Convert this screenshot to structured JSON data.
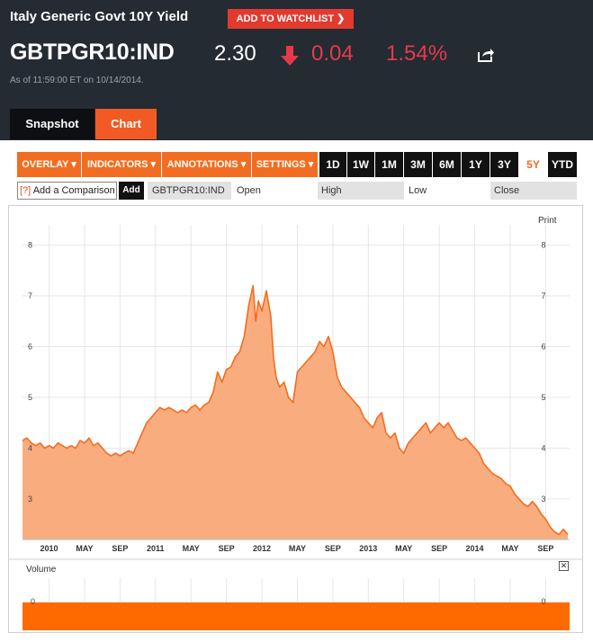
{
  "header": {
    "title": "Italy Generic Govt 10Y Yield",
    "watchlist_label": "ADD TO WATCHLIST",
    "ticker": "GBTPGR10:IND",
    "price": "2.30",
    "change": "0.04",
    "change_pct": "1.54%",
    "as_of": "As of 11:59:00 ET on 10/14/2014.",
    "change_color": "#e8394a",
    "arrow_icon": "down-arrow-icon",
    "share_icon": "share-icon"
  },
  "tabs": [
    {
      "label": "Snapshot"
    },
    {
      "label": "Chart",
      "active": true
    }
  ],
  "toolbar": {
    "menus": [
      "OVERLAY ▾",
      "INDICATORS ▾",
      "ANNOTATIONS ▾",
      "SETTINGS ▾"
    ],
    "ranges": [
      "1D",
      "1W",
      "1M",
      "3M",
      "6M",
      "1Y",
      "3Y",
      "5Y",
      "YTD"
    ],
    "active_range": "5Y",
    "accent_color": "#f26d21"
  },
  "comparison": {
    "icon_text": "[?]",
    "placeholder": "Add a Comparison",
    "add_label": "Add",
    "symbol": "GBTPGR10:IND",
    "open_label": "Open",
    "high_label": "High",
    "low_label": "Low",
    "close_label": "Close"
  },
  "print_label": "Print",
  "volume": {
    "label": "Volume",
    "zero_label": "0",
    "close_label": "✕"
  },
  "chart_data": {
    "type": "area",
    "ylim": [
      2.2,
      8.4
    ],
    "y_ticks": [
      "3",
      "4",
      "5",
      "6",
      "7",
      "8"
    ],
    "x_tick_labels": [
      "2010",
      "MAY",
      "SEP",
      "2011",
      "MAY",
      "SEP",
      "2012",
      "MAY",
      "SEP",
      "2013",
      "MAY",
      "SEP",
      "2014",
      "MAY",
      "SEP"
    ],
    "x_tick_months": [
      12,
      16,
      20,
      24,
      28,
      32,
      36,
      40,
      44,
      48,
      52,
      56,
      60,
      64,
      68
    ],
    "xlim_months": [
      9,
      70.7
    ],
    "series": [
      {
        "points": [
          [
            9.0,
            4.15
          ],
          [
            9.5,
            4.2
          ],
          [
            10,
            4.1
          ],
          [
            10.5,
            4.05
          ],
          [
            11,
            4.1
          ],
          [
            11.5,
            4.0
          ],
          [
            12,
            4.05
          ],
          [
            12.5,
            4.0
          ],
          [
            13,
            4.1
          ],
          [
            13.5,
            4.05
          ],
          [
            14,
            4.0
          ],
          [
            14.5,
            4.05
          ],
          [
            15,
            4.0
          ],
          [
            15.5,
            4.15
          ],
          [
            16,
            4.1
          ],
          [
            16.5,
            4.2
          ],
          [
            17,
            4.05
          ],
          [
            17.5,
            4.1
          ],
          [
            18,
            4.0
          ],
          [
            18.5,
            3.9
          ],
          [
            19,
            3.85
          ],
          [
            19.5,
            3.9
          ],
          [
            20,
            3.85
          ],
          [
            20.5,
            3.9
          ],
          [
            21,
            3.95
          ],
          [
            21.5,
            3.9
          ],
          [
            22,
            4.1
          ],
          [
            22.5,
            4.3
          ],
          [
            23,
            4.5
          ],
          [
            23.5,
            4.6
          ],
          [
            24,
            4.7
          ],
          [
            24.5,
            4.8
          ],
          [
            25,
            4.75
          ],
          [
            25.5,
            4.8
          ],
          [
            26,
            4.75
          ],
          [
            26.5,
            4.7
          ],
          [
            27,
            4.75
          ],
          [
            27.5,
            4.7
          ],
          [
            28,
            4.8
          ],
          [
            28.5,
            4.85
          ],
          [
            29,
            4.75
          ],
          [
            29.5,
            4.85
          ],
          [
            30,
            4.9
          ],
          [
            30.5,
            5.1
          ],
          [
            31,
            5.5
          ],
          [
            31.5,
            5.3
          ],
          [
            32,
            5.55
          ],
          [
            32.5,
            5.6
          ],
          [
            33,
            5.8
          ],
          [
            33.5,
            5.9
          ],
          [
            34,
            6.2
          ],
          [
            34.5,
            6.8
          ],
          [
            35,
            7.2
          ],
          [
            35.3,
            6.5
          ],
          [
            35.6,
            6.9
          ],
          [
            36,
            6.7
          ],
          [
            36.5,
            7.1
          ],
          [
            37,
            6.6
          ],
          [
            37.3,
            5.8
          ],
          [
            37.6,
            5.4
          ],
          [
            38,
            5.2
          ],
          [
            38.5,
            5.3
          ],
          [
            39,
            5.0
          ],
          [
            39.5,
            4.9
          ],
          [
            40,
            5.5
          ],
          [
            40.5,
            5.6
          ],
          [
            41,
            5.7
          ],
          [
            41.5,
            5.8
          ],
          [
            42,
            5.9
          ],
          [
            42.5,
            6.1
          ],
          [
            43,
            6.0
          ],
          [
            43.5,
            6.2
          ],
          [
            44,
            5.9
          ],
          [
            44.5,
            5.4
          ],
          [
            45,
            5.2
          ],
          [
            45.5,
            5.1
          ],
          [
            46,
            5.0
          ],
          [
            46.5,
            4.9
          ],
          [
            47,
            4.8
          ],
          [
            47.5,
            4.6
          ],
          [
            48,
            4.5
          ],
          [
            48.5,
            4.4
          ],
          [
            49,
            4.6
          ],
          [
            49.5,
            4.7
          ],
          [
            50,
            4.3
          ],
          [
            50.5,
            4.2
          ],
          [
            51,
            4.3
          ],
          [
            51.5,
            4.0
          ],
          [
            52,
            3.9
          ],
          [
            52.5,
            4.1
          ],
          [
            53,
            4.2
          ],
          [
            53.5,
            4.3
          ],
          [
            54,
            4.4
          ],
          [
            54.5,
            4.5
          ],
          [
            55,
            4.3
          ],
          [
            55.5,
            4.4
          ],
          [
            56,
            4.5
          ],
          [
            56.5,
            4.4
          ],
          [
            57,
            4.5
          ],
          [
            57.5,
            4.35
          ],
          [
            58,
            4.2
          ],
          [
            58.5,
            4.15
          ],
          [
            59,
            4.2
          ],
          [
            59.5,
            4.1
          ],
          [
            60,
            4.0
          ],
          [
            60.5,
            3.9
          ],
          [
            61,
            3.7
          ],
          [
            61.5,
            3.6
          ],
          [
            62,
            3.5
          ],
          [
            62.5,
            3.45
          ],
          [
            63,
            3.4
          ],
          [
            63.5,
            3.3
          ],
          [
            64,
            3.25
          ],
          [
            64.5,
            3.1
          ],
          [
            65,
            3.0
          ],
          [
            65.5,
            2.9
          ],
          [
            66,
            2.85
          ],
          [
            66.5,
            2.95
          ],
          [
            67,
            2.85
          ],
          [
            67.5,
            2.7
          ],
          [
            68,
            2.6
          ],
          [
            68.5,
            2.45
          ],
          [
            69,
            2.35
          ],
          [
            69.5,
            2.3
          ],
          [
            70,
            2.4
          ],
          [
            70.5,
            2.3
          ]
        ]
      }
    ],
    "fill_color": "#f9ad7e",
    "line_color": "#f26d21",
    "volume_color": "#ff6a00"
  }
}
